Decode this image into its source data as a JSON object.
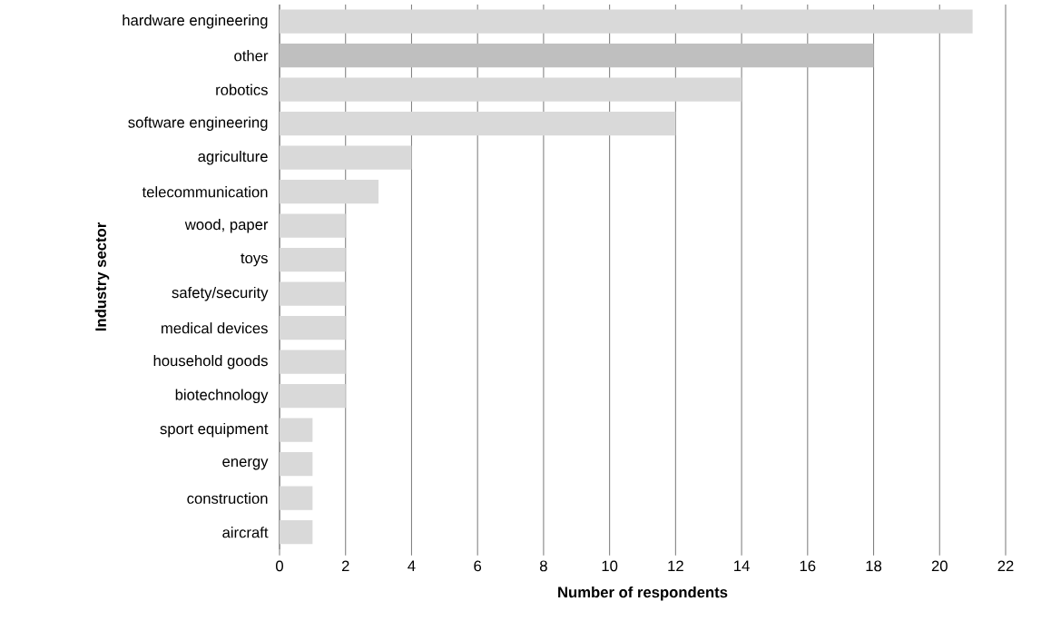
{
  "chart_data": {
    "type": "bar",
    "orientation": "horizontal",
    "xlabel": "Number of respondents",
    "ylabel": "Industry sector",
    "categories": [
      "hardware engineering",
      "other",
      "robotics",
      "software engineering",
      "agriculture",
      "telecommunication",
      "wood, paper",
      "toys",
      "safety/security",
      "medical devices",
      "household goods",
      "biotechnology",
      "sport equipment",
      "energy",
      "construction",
      "aircraft"
    ],
    "values": [
      21,
      18,
      14,
      12,
      4,
      3,
      2,
      2,
      2,
      2,
      2,
      2,
      1,
      1,
      1,
      1
    ],
    "colors": [
      "#d9d9d9",
      "#bfbfbf",
      "#d9d9d9",
      "#d9d9d9",
      "#d9d9d9",
      "#d9d9d9",
      "#d9d9d9",
      "#d9d9d9",
      "#d9d9d9",
      "#d9d9d9",
      "#d9d9d9",
      "#d9d9d9",
      "#d9d9d9",
      "#d9d9d9",
      "#d9d9d9",
      "#d9d9d9"
    ],
    "xlim": [
      0,
      22
    ],
    "xticks": [
      0,
      2,
      4,
      6,
      8,
      10,
      12,
      14,
      16,
      18,
      20,
      22
    ],
    "grid": "x"
  }
}
